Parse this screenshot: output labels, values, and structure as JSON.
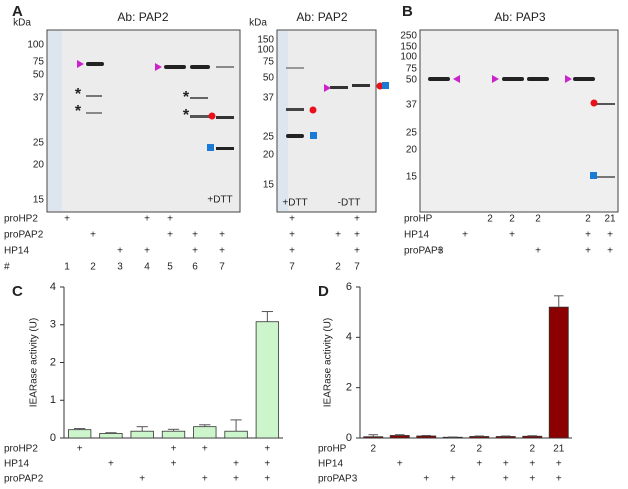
{
  "panel_labels": [
    "A",
    "B"
  ],
  "blots": [
    {
      "title": "Ab: PAP2",
      "unit": "kDa",
      "markers": [
        100,
        75,
        50,
        37,
        25,
        20,
        15
      ],
      "annotations": [
        "*",
        "*",
        "*",
        "*",
        "+DTT"
      ]
    },
    {
      "title": "Ab: PAP2",
      "unit": "kDa",
      "markers": [
        150,
        100,
        75,
        50,
        37,
        25,
        20,
        15
      ],
      "annotations": [
        "+DTT",
        "-DTT"
      ]
    },
    {
      "title": "Ab: PAP3",
      "markers": [
        250,
        150,
        100,
        75,
        50,
        37,
        25,
        20,
        15
      ]
    }
  ],
  "blot_conditions": [
    {
      "rows": [
        {
          "label": "proHP2",
          "cells": [
            "+",
            null,
            null,
            "+",
            "+",
            null,
            null,
            "+",
            null,
            "+"
          ]
        },
        {
          "label": "proPAP2",
          "cells": [
            null,
            "+",
            null,
            null,
            "+",
            "+",
            "+",
            "+",
            "+",
            "+"
          ]
        },
        {
          "label": "HP14",
          "cells": [
            null,
            null,
            "+",
            "+",
            null,
            "+",
            "+",
            "+",
            null,
            "+"
          ]
        },
        {
          "label": "#",
          "cells": [
            1,
            2,
            3,
            4,
            5,
            6,
            7,
            7,
            2,
            7
          ]
        }
      ]
    },
    {
      "rows": [
        {
          "label": "proHP",
          "cells": [
            null,
            null,
            2,
            2,
            2,
            null,
            2,
            21
          ]
        },
        {
          "label": "HP14",
          "cells": [
            null,
            "+",
            null,
            "+",
            null,
            null,
            "+",
            "+"
          ]
        },
        {
          "label": "proPAP3",
          "cells": [
            "+",
            null,
            null,
            null,
            "+",
            null,
            "+",
            "+"
          ]
        }
      ]
    }
  ],
  "chart_data": [
    {
      "type": "bar",
      "panel": "C",
      "ylabel": "IEARase activity (U)",
      "color": "#ccf5cc",
      "edge": "#333333",
      "values": [
        0.22,
        0.12,
        0.18,
        0.18,
        0.3,
        0.18,
        3.08
      ],
      "errors": [
        0.03,
        0.02,
        0.12,
        0.05,
        0.05,
        0.3,
        0.27
      ],
      "ylim": [
        0,
        4
      ],
      "yticks": [
        0,
        1,
        2,
        3,
        4
      ],
      "conditions": [
        {
          "label": "proHP2",
          "cells": [
            "+",
            null,
            null,
            "+",
            "+",
            null,
            "+"
          ]
        },
        {
          "label": "HP14",
          "cells": [
            null,
            "+",
            null,
            "+",
            null,
            "+",
            "+"
          ]
        },
        {
          "label": "proPAP2",
          "cells": [
            null,
            null,
            "+",
            null,
            "+",
            "+",
            "+"
          ]
        }
      ]
    },
    {
      "type": "bar",
      "panel": "D",
      "ylabel": "IEARase activity (U)",
      "color": "#8b0000",
      "edge": "#333333",
      "values": [
        0.05,
        0.1,
        0.08,
        0.03,
        0.06,
        0.06,
        0.07,
        5.2
      ],
      "errors": [
        0.08,
        0.03,
        0.02,
        0.01,
        0.02,
        0.02,
        0.02,
        0.45
      ],
      "ylim": [
        0,
        6
      ],
      "yticks": [
        0,
        2,
        4,
        6
      ],
      "conditions": [
        {
          "label": "proHP",
          "cells": [
            2,
            null,
            null,
            2,
            2,
            null,
            2,
            21
          ]
        },
        {
          "label": "HP14",
          "cells": [
            null,
            "+",
            null,
            null,
            "+",
            "+",
            "+",
            "+"
          ]
        },
        {
          "label": "proPAP3",
          "cells": [
            null,
            null,
            "+",
            "+",
            null,
            "+",
            "+",
            "+"
          ]
        }
      ]
    }
  ]
}
